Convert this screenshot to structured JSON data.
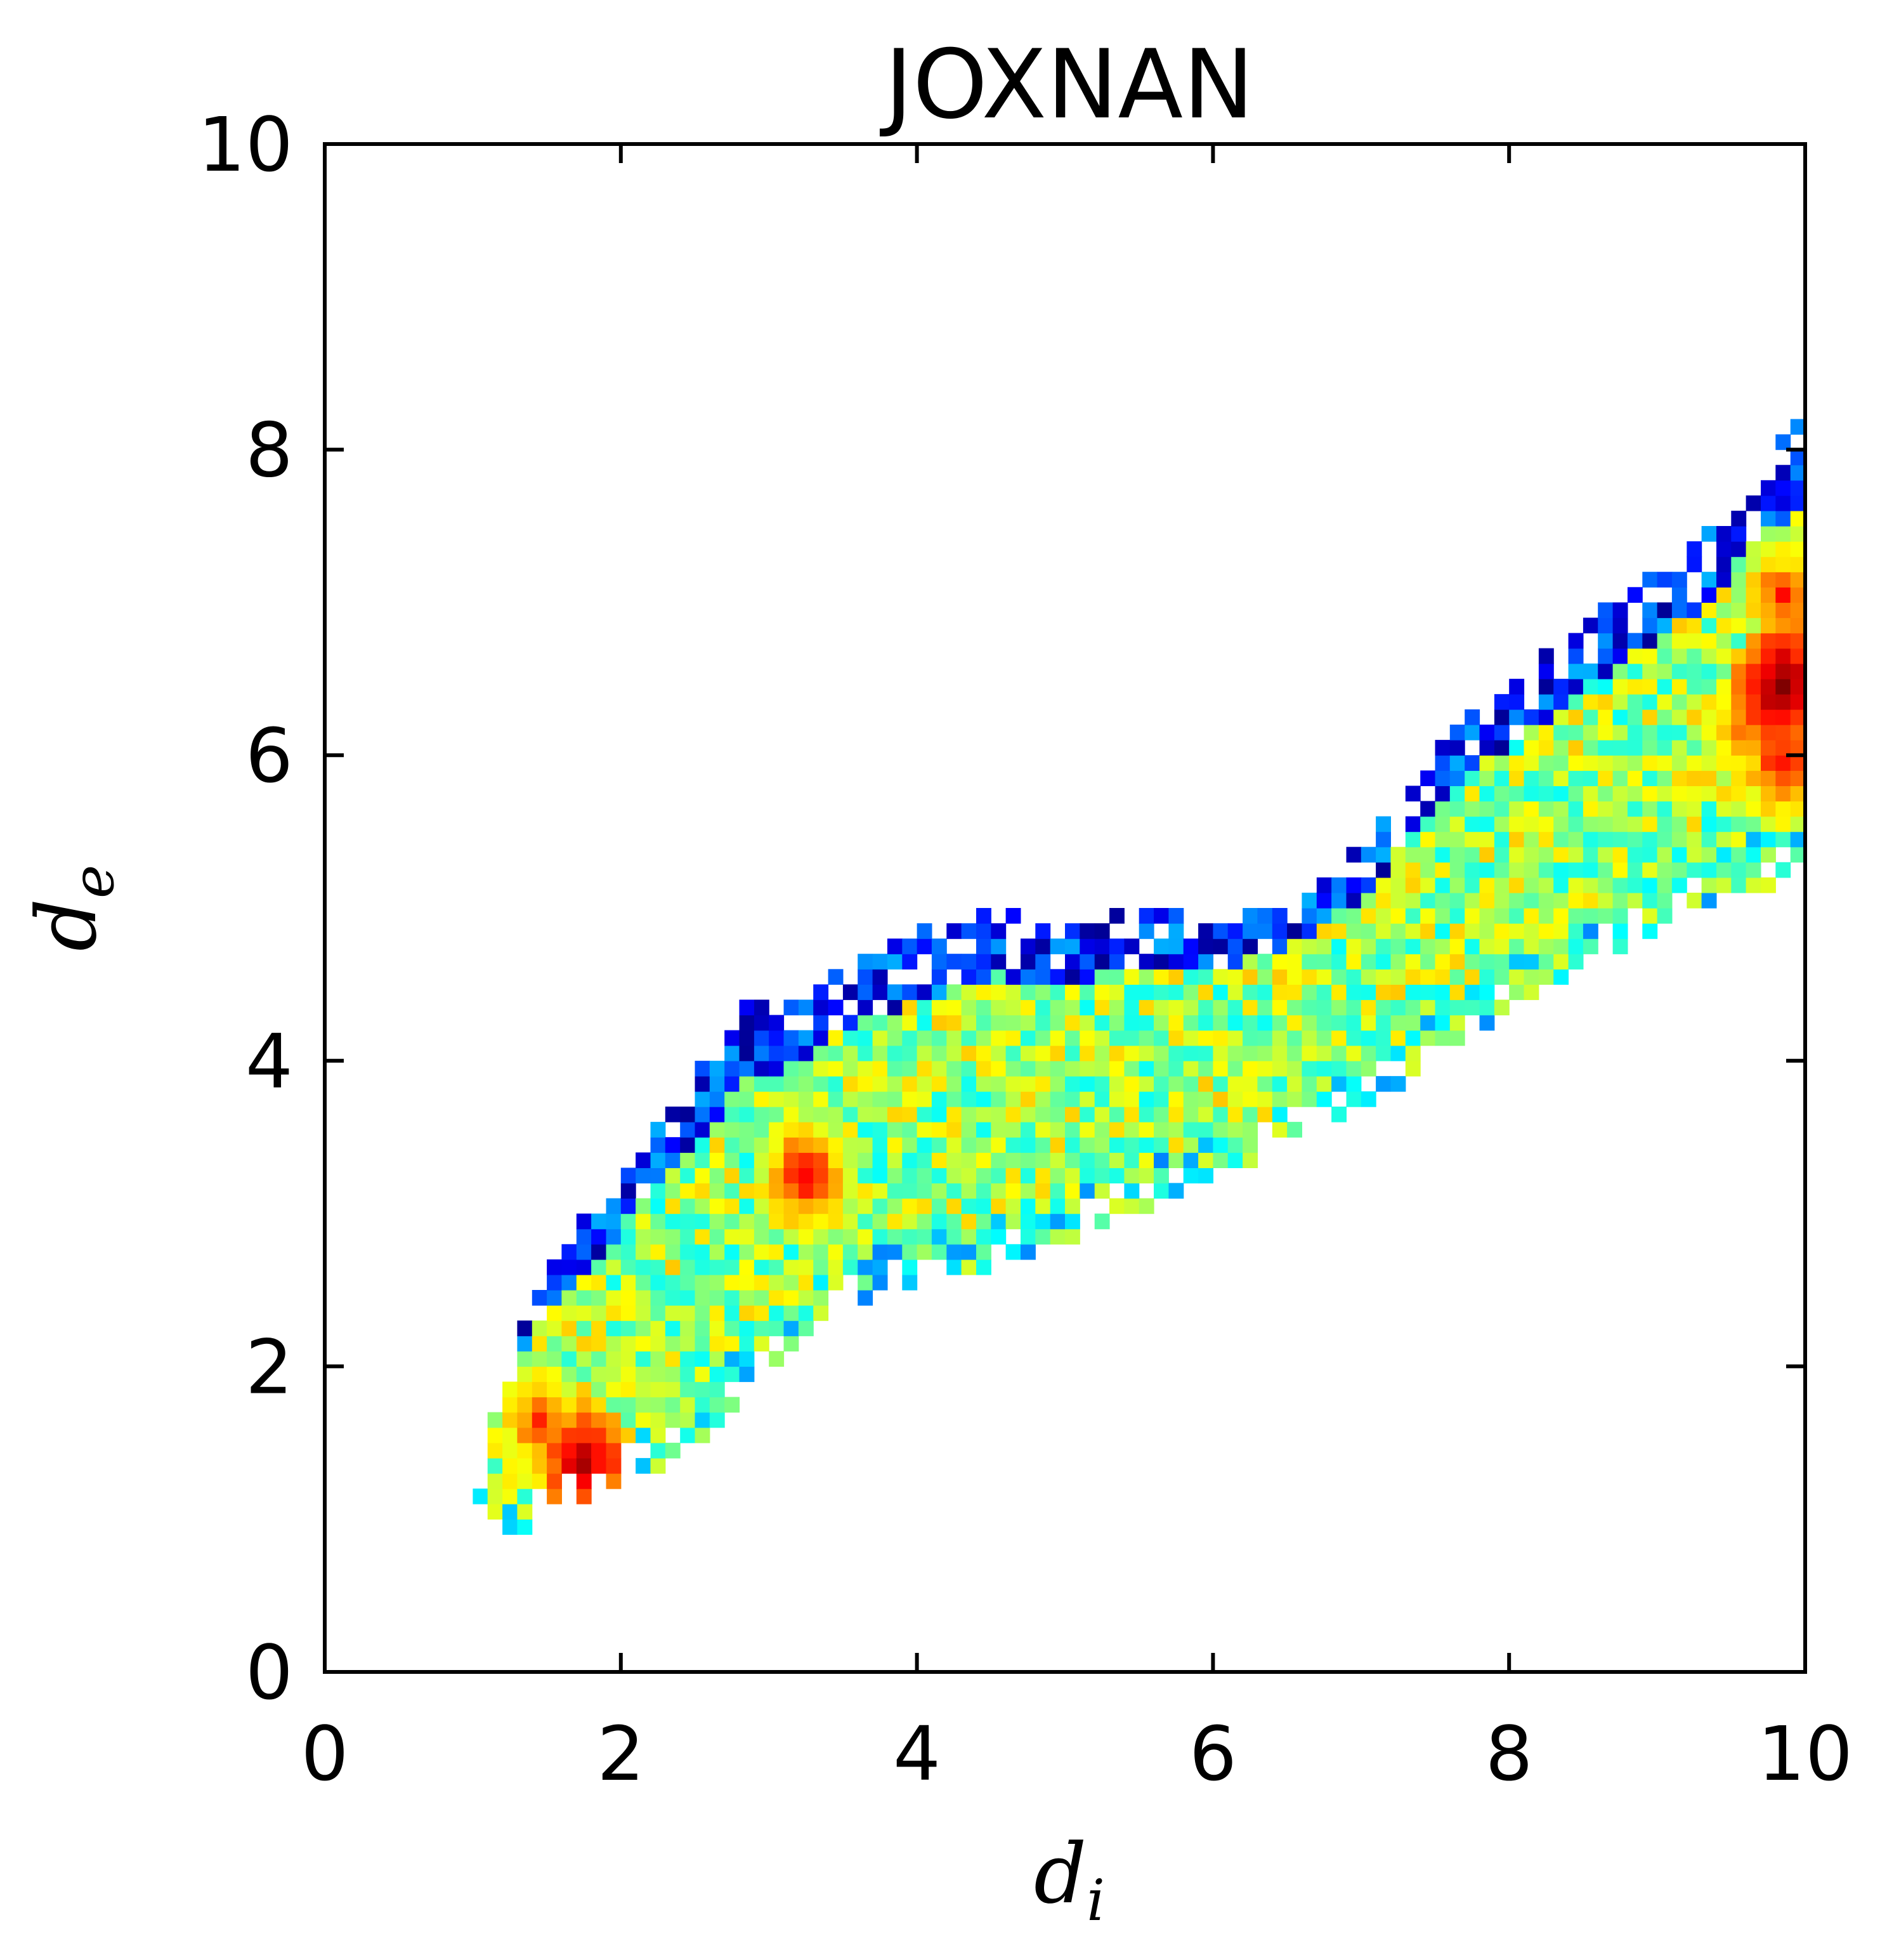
{
  "chart_data": {
    "type": "heatmap",
    "title": "JOXNAN",
    "xlabel": {
      "base": "d",
      "sub": "i"
    },
    "ylabel": {
      "base": "d",
      "sub": "e"
    },
    "xlim": [
      0,
      10
    ],
    "ylim": [
      0,
      10
    ],
    "x_ticks": [
      "0",
      "2",
      "4",
      "6",
      "8",
      "10"
    ],
    "y_ticks": [
      "0",
      "2",
      "4",
      "6",
      "8",
      "10"
    ],
    "grid": false,
    "legend": "none",
    "colormap": "jet",
    "bin_width": 0.1,
    "colormap_stops": [
      "#00007f",
      "#0000ff",
      "#007fff",
      "#00ffff",
      "#7fff7f",
      "#ffff00",
      "#ff7f00",
      "#ff0000",
      "#7f0000"
    ],
    "envelope": {
      "description": "density of d_i / d_e pairs (bins 0.1 wide), value 0-1",
      "x": [
        1.0,
        1.2,
        1.5,
        2.0,
        2.5,
        2.8,
        3.2,
        3.5,
        4.0,
        4.5,
        5.0,
        5.5,
        6.0,
        6.5,
        7.0,
        7.5,
        8.0,
        8.5,
        9.0,
        9.5,
        9.7,
        9.8,
        9.9
      ],
      "lower": [
        1.1,
        0.9,
        1.1,
        1.3,
        1.5,
        1.9,
        2.25,
        2.45,
        2.6,
        2.7,
        2.9,
        3.1,
        3.3,
        3.55,
        3.75,
        4.1,
        4.4,
        4.7,
        4.95,
        5.15,
        5.2,
        5.2,
        5.3
      ],
      "upper": [
        1.2,
        2.1,
        2.7,
        3.3,
        3.95,
        4.3,
        4.4,
        4.6,
        4.8,
        4.95,
        4.85,
        4.95,
        4.85,
        5.0,
        5.4,
        6.1,
        6.45,
        6.85,
        7.2,
        7.55,
        7.9,
        8.05,
        8.15
      ],
      "hotspots": [
        {
          "x": 1.7,
          "y": 1.3,
          "intensity": 0.95
        },
        {
          "x": 1.4,
          "y": 1.6,
          "intensity": 0.8
        },
        {
          "x": 3.2,
          "y": 3.2,
          "intensity": 0.85
        },
        {
          "x": 9.8,
          "y": 6.4,
          "intensity": 1.0
        },
        {
          "x": 9.8,
          "y": 5.9,
          "intensity": 0.85
        },
        {
          "x": 9.8,
          "y": 7.0,
          "intensity": 0.8
        },
        {
          "x": 9.5,
          "y": 6.1,
          "intensity": 0.75
        }
      ]
    }
  }
}
